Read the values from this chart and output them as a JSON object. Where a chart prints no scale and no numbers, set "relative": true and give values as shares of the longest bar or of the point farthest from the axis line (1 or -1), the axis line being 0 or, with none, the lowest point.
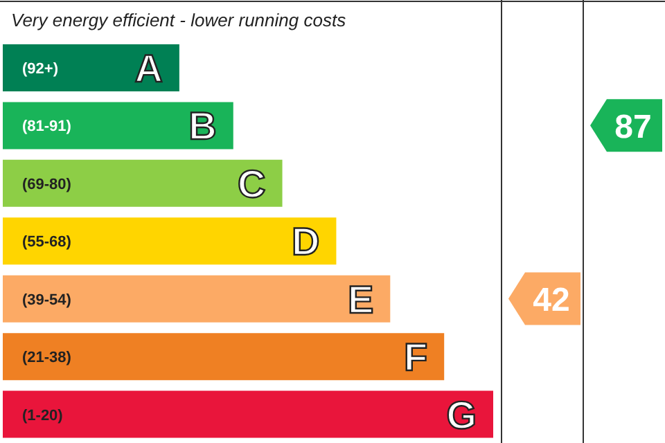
{
  "chart_data": {
    "type": "bar",
    "orientation": "horizontal",
    "relative": true,
    "title": "Very energy efficient - lower running costs",
    "categories": [
      "A",
      "B",
      "C",
      "D",
      "E",
      "F",
      "G"
    ],
    "values": [
      0.36,
      0.47,
      0.57,
      0.68,
      0.79,
      0.9,
      1
    ],
    "colors": [
      "#008054",
      "#19b459",
      "#8dce46",
      "#ffd500",
      "#fcaa65",
      "#ef8023",
      "#e9153b"
    ],
    "annotations": [
      "(92+)",
      "(81-91)",
      "(69-80)",
      "(55-68)",
      "(39-54)",
      "(21-38)",
      "(1-20)",
      "42",
      "87"
    ]
  }
}
